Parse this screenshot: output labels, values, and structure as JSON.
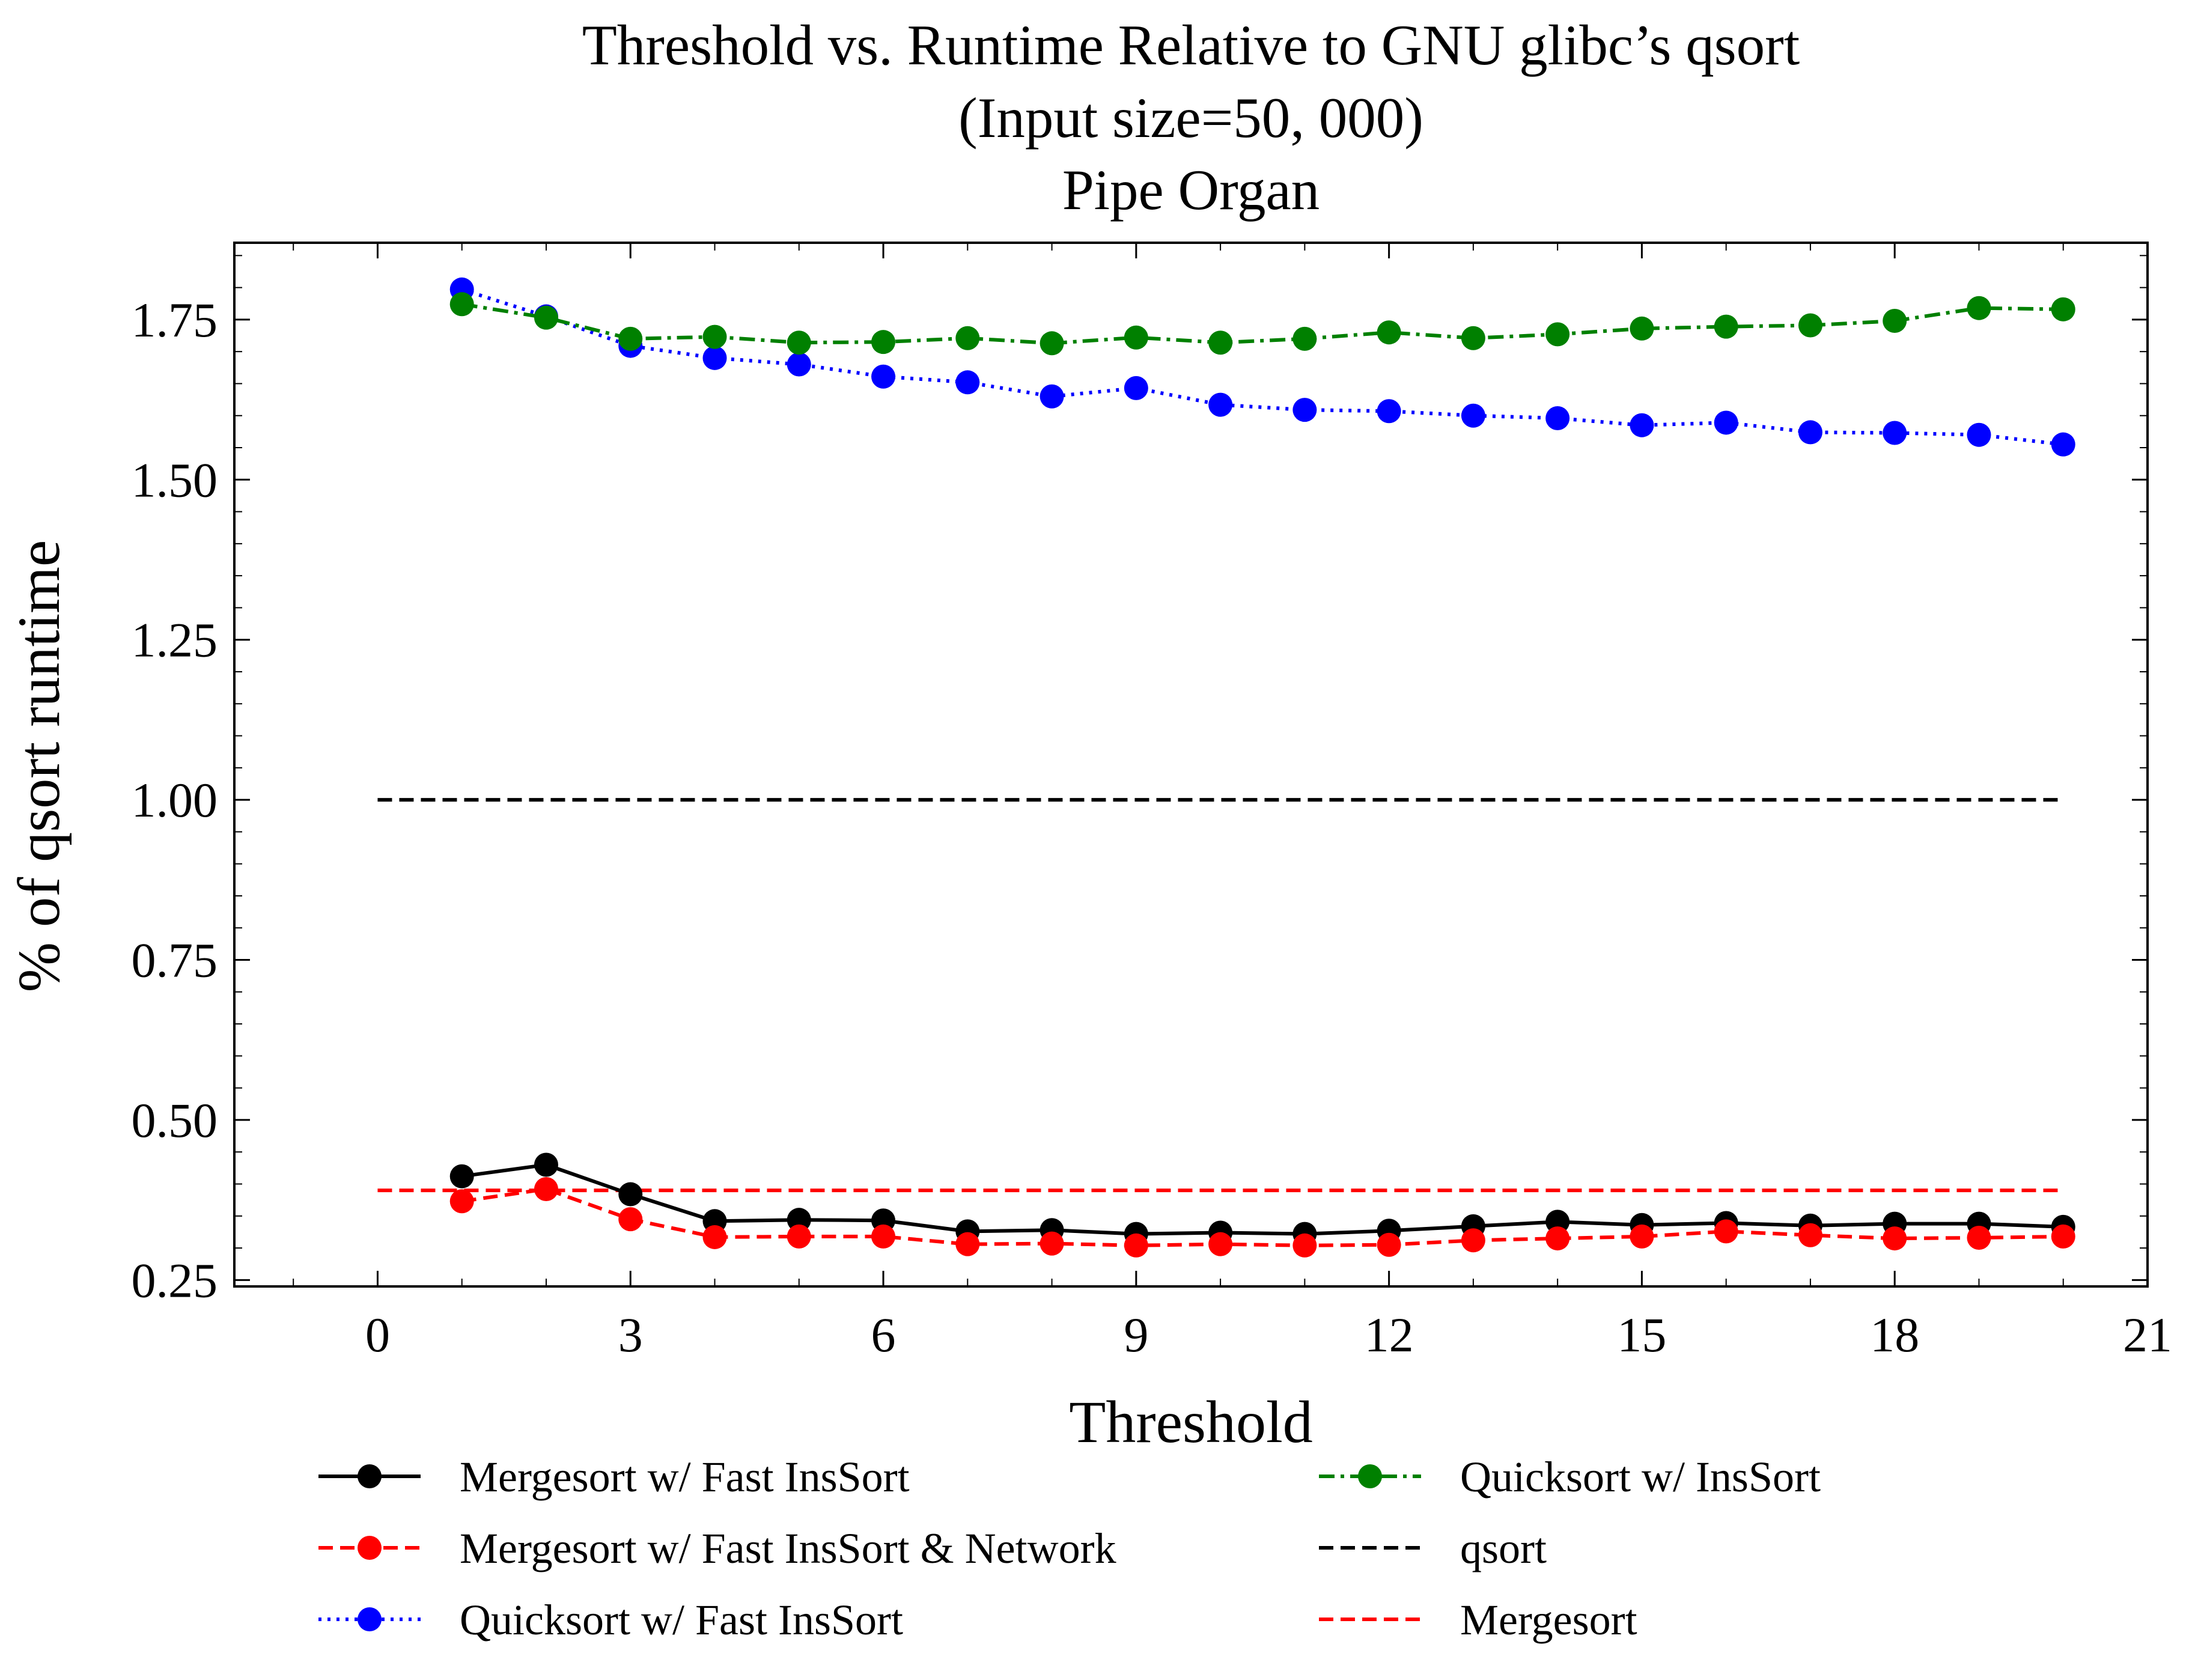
{
  "chart_data": {
    "type": "line",
    "title_lines": [
      "Threshold vs. Runtime Relative to GNU glibc’s qsort",
      "(Input size=50, 000)",
      "Pipe Organ"
    ],
    "xlabel": "Threshold",
    "ylabel": "% of qsort runtime",
    "xlim": [
      -1.7,
      21
    ],
    "ylim": [
      0.24,
      1.87
    ],
    "xticks": [
      0,
      3,
      6,
      9,
      12,
      15,
      18,
      21
    ],
    "xtick_labels": [
      "0",
      "3",
      "6",
      "9",
      "12",
      "15",
      "18",
      "21"
    ],
    "yticks": [
      0.25,
      0.5,
      0.75,
      1.0,
      1.25,
      1.5,
      1.75
    ],
    "ytick_labels": [
      "0.25",
      "0.50",
      "0.75",
      "1.00",
      "1.25",
      "1.50",
      "1.75"
    ],
    "grid": false,
    "legend_position": "bottom (below chart, two columns)",
    "x": [
      1,
      2,
      3,
      4,
      5,
      6,
      7,
      8,
      9,
      10,
      11,
      12,
      13,
      14,
      15,
      16,
      17,
      18,
      19,
      20
    ],
    "series": [
      {
        "name": "Mergesort w/ Fast InsSort",
        "color": "#000000",
        "style": "solid",
        "marker": true,
        "values": [
          0.412,
          0.43,
          0.384,
          0.342,
          0.344,
          0.343,
          0.326,
          0.328,
          0.322,
          0.324,
          0.322,
          0.327,
          0.334,
          0.341,
          0.336,
          0.339,
          0.335,
          0.338,
          0.338,
          0.333
        ]
      },
      {
        "name": "Mergesort w/ Fast InsSort & Network",
        "color": "#ff0000",
        "style": "dashed",
        "marker": true,
        "values": [
          0.373,
          0.392,
          0.345,
          0.317,
          0.318,
          0.318,
          0.306,
          0.307,
          0.304,
          0.306,
          0.304,
          0.305,
          0.312,
          0.315,
          0.318,
          0.326,
          0.32,
          0.315,
          0.316,
          0.318
        ]
      },
      {
        "name": "Quicksort w/ Fast InsSort",
        "color": "#0000ff",
        "style": "dotted",
        "marker": true,
        "values": [
          1.797,
          1.755,
          1.709,
          1.69,
          1.68,
          1.661,
          1.652,
          1.63,
          1.643,
          1.617,
          1.609,
          1.607,
          1.6,
          1.596,
          1.585,
          1.589,
          1.574,
          1.573,
          1.57,
          1.555
        ]
      },
      {
        "name": "Quicksort w/ InsSort",
        "color": "#008000",
        "style": "dashdot",
        "marker": true,
        "values": [
          1.774,
          1.753,
          1.72,
          1.723,
          1.714,
          1.715,
          1.721,
          1.713,
          1.722,
          1.714,
          1.72,
          1.73,
          1.721,
          1.727,
          1.736,
          1.739,
          1.741,
          1.748,
          1.768,
          1.766
        ]
      },
      {
        "name": "qsort",
        "color": "#000000",
        "style": "dashed",
        "marker": false,
        "constant": 1.0,
        "x_range": [
          0,
          20
        ]
      },
      {
        "name": "Mergesort",
        "color": "#ff0000",
        "style": "dashed",
        "marker": false,
        "constant": 0.39,
        "x_range": [
          0,
          20
        ]
      }
    ]
  }
}
